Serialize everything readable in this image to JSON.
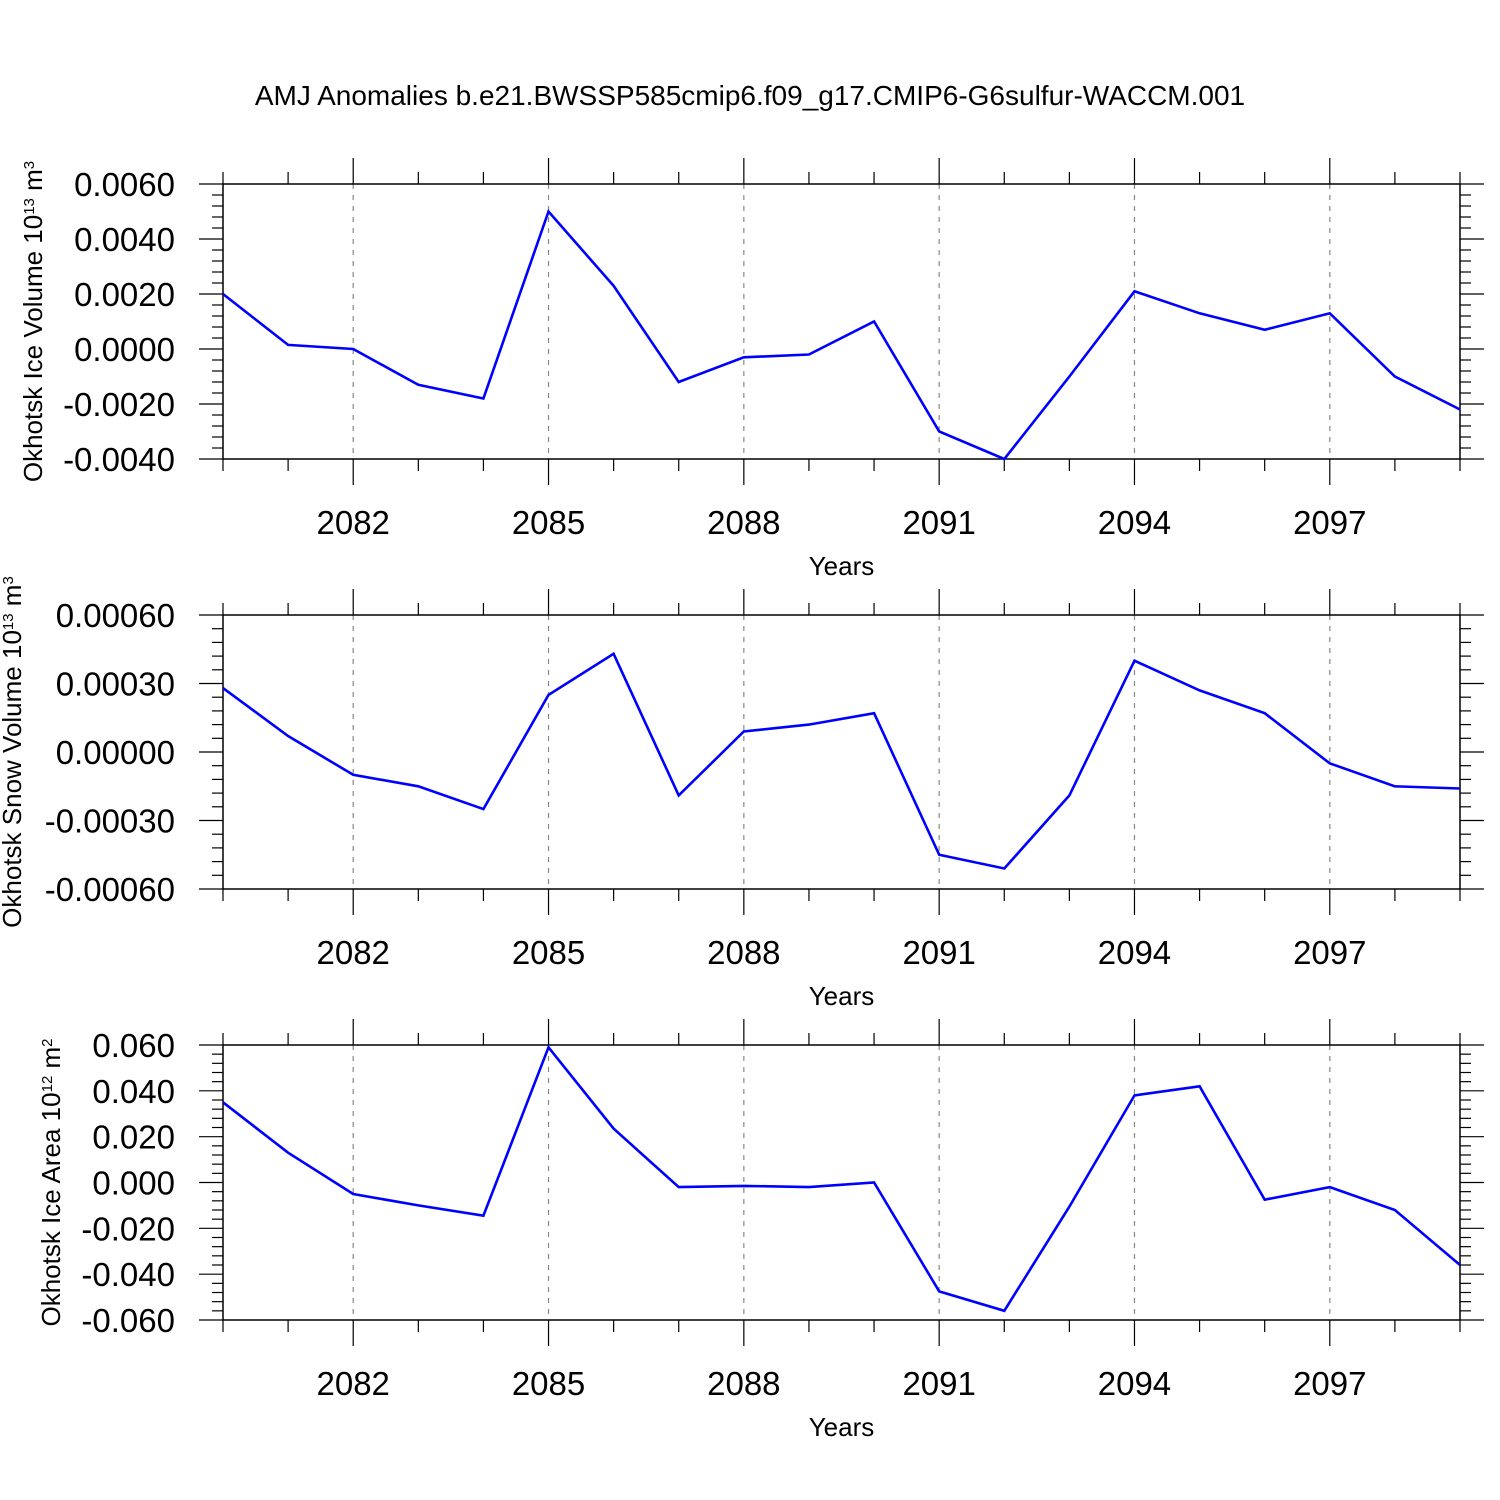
{
  "title": "AMJ Anomalies b.e21.BWSSP585cmip6.f09_g17.CMIP6-G6sulfur-WACCM.001",
  "line_color": "#0000ff",
  "chart_data": [
    {
      "type": "line",
      "ylabel": "Okhotsk Ice Volume",
      "yunit_base": "10",
      "yunit_exp": "13",
      "yunit_tail": " m",
      "yunit_tail_exp": "3",
      "xlabel": "Years",
      "xlim": [
        2080,
        2099
      ],
      "ylim": [
        -0.004,
        0.006
      ],
      "yticks": [
        -0.004,
        -0.002,
        0.0,
        0.002,
        0.004,
        0.006
      ],
      "yticklabels": [
        "-0.0040",
        "-0.0020",
        "0.0000",
        "0.0020",
        "0.0040",
        "0.0060"
      ],
      "xticks": [
        2082,
        2085,
        2088,
        2091,
        2094,
        2097
      ],
      "xticklabels": [
        "2082",
        "2085",
        "2088",
        "2091",
        "2094",
        "2097"
      ],
      "x": [
        2080,
        2081,
        2082,
        2083,
        2084,
        2085,
        2086,
        2087,
        2088,
        2089,
        2090,
        2091,
        2092,
        2093,
        2094,
        2095,
        2096,
        2097,
        2098,
        2099
      ],
      "series": [
        {
          "values": [
            0.002,
            0.00015,
            0.0,
            -0.0013,
            -0.0018,
            0.005,
            0.0023,
            -0.0012,
            -0.0003,
            -0.0002,
            0.001,
            -0.003,
            -0.004,
            -0.001,
            0.0021,
            0.0013,
            0.0007,
            0.0013,
            -0.001,
            -0.0022
          ]
        }
      ]
    },
    {
      "type": "line",
      "ylabel": "Okhotsk Snow Volume",
      "yunit_base": "10",
      "yunit_exp": "13",
      "yunit_tail": " m",
      "yunit_tail_exp": "3",
      "xlabel": "Years",
      "xlim": [
        2080,
        2099
      ],
      "ylim": [
        -0.0006,
        0.0006
      ],
      "yticks": [
        -0.0006,
        -0.0003,
        0.0,
        0.0003,
        0.0006
      ],
      "yticklabels": [
        "-0.00060",
        "-0.00030",
        "0.00000",
        "0.00030",
        "0.00060"
      ],
      "xticks": [
        2082,
        2085,
        2088,
        2091,
        2094,
        2097
      ],
      "xticklabels": [
        "2082",
        "2085",
        "2088",
        "2091",
        "2094",
        "2097"
      ],
      "x": [
        2080,
        2081,
        2082,
        2083,
        2084,
        2085,
        2086,
        2087,
        2088,
        2089,
        2090,
        2091,
        2092,
        2093,
        2094,
        2095,
        2096,
        2097,
        2098,
        2099
      ],
      "series": [
        {
          "values": [
            0.00028,
            7e-05,
            -0.0001,
            -0.00015,
            -0.00025,
            0.00025,
            0.00043,
            -0.00019,
            9e-05,
            0.00012,
            0.00017,
            -0.00045,
            -0.00051,
            -0.00019,
            0.0004,
            0.00027,
            0.00017,
            -5e-05,
            -0.00015,
            -0.00016
          ]
        }
      ]
    },
    {
      "type": "line",
      "ylabel": "Okhotsk Ice Area",
      "yunit_base": "10",
      "yunit_exp": "12",
      "yunit_tail": " m",
      "yunit_tail_exp": "2",
      "xlabel": "Years",
      "xlim": [
        2080,
        2099
      ],
      "ylim": [
        -0.06,
        0.06
      ],
      "yticks": [
        -0.06,
        -0.04,
        -0.02,
        0.0,
        0.02,
        0.04,
        0.06
      ],
      "yticklabels": [
        "-0.060",
        "-0.040",
        "-0.020",
        "0.000",
        "0.020",
        "0.040",
        "0.060"
      ],
      "xticks": [
        2082,
        2085,
        2088,
        2091,
        2094,
        2097
      ],
      "xticklabels": [
        "2082",
        "2085",
        "2088",
        "2091",
        "2094",
        "2097"
      ],
      "x": [
        2080,
        2081,
        2082,
        2083,
        2084,
        2085,
        2086,
        2087,
        2088,
        2089,
        2090,
        2091,
        2092,
        2093,
        2094,
        2095,
        2096,
        2097,
        2098,
        2099
      ],
      "series": [
        {
          "values": [
            0.035,
            0.013,
            -0.005,
            -0.01,
            -0.0145,
            0.059,
            0.0235,
            -0.002,
            -0.0015,
            -0.002,
            0.0,
            -0.0475,
            -0.056,
            -0.0105,
            0.038,
            0.042,
            -0.0075,
            -0.002,
            -0.012,
            -0.036
          ]
        }
      ]
    }
  ]
}
